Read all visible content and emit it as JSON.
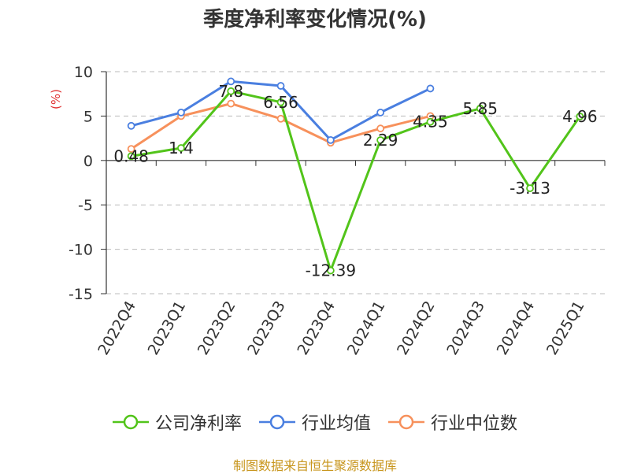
{
  "colors": {
    "company": "#52c41a",
    "avg": "#4a7fe0",
    "median": "#f7915c",
    "axis": "#333333",
    "grid": "#bbbbbb",
    "ylabel": "#e03131",
    "source": "#c8961e"
  },
  "chart_data": {
    "type": "line",
    "title": "季度净利率变化情况(%)",
    "ylabel": "(%)",
    "ylim": [
      -15,
      10
    ],
    "yticks": [
      10,
      5,
      0,
      -5,
      -10,
      -15
    ],
    "grid": "horizontal dashed",
    "legend_position": "bottom",
    "categories": [
      "2022Q4",
      "2023Q1",
      "2023Q2",
      "2023Q3",
      "2023Q4",
      "2024Q1",
      "2024Q2",
      "2024Q3",
      "2024Q4",
      "2025Q1"
    ],
    "series": [
      {
        "name": "公司净利率",
        "color": "#52c41a",
        "values": [
          0.48,
          1.4,
          7.8,
          6.56,
          -12.39,
          2.29,
          4.35,
          5.85,
          -3.13,
          4.96
        ],
        "data_labels": [
          "0.48",
          "1.4",
          "7.8",
          "6.56",
          "-12.39",
          "2.29",
          "4.35",
          "5.85",
          "-3.13",
          "4.96"
        ]
      },
      {
        "name": "行业均值",
        "color": "#4a7fe0",
        "values": [
          3.9,
          5.4,
          8.9,
          8.4,
          2.3,
          5.4,
          8.1,
          null,
          null,
          null
        ]
      },
      {
        "name": "行业中位数",
        "color": "#f7915c",
        "values": [
          1.3,
          5.0,
          6.4,
          4.7,
          2.0,
          3.6,
          5.0,
          null,
          null,
          null
        ]
      }
    ]
  },
  "source": "制图数据来自恒生聚源数据库"
}
